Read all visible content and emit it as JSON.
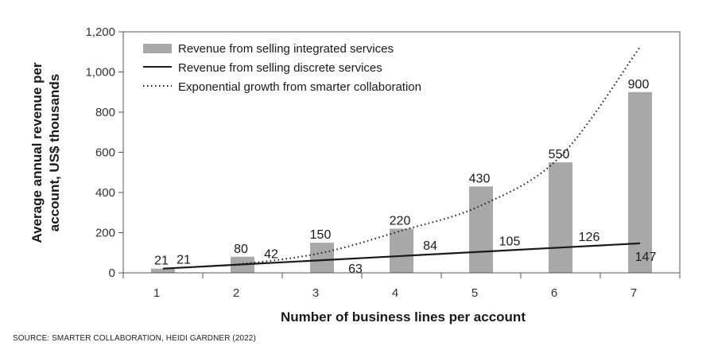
{
  "chart_data": {
    "type": "bar",
    "categories": [
      "1",
      "2",
      "3",
      "4",
      "5",
      "6",
      "7"
    ],
    "series": [
      {
        "name": "Revenue from selling integrated services",
        "type": "bar",
        "values": [
          21,
          80,
          150,
          220,
          430,
          550,
          900
        ],
        "color": "#a8a8a8"
      },
      {
        "name": "Revenue from selling discrete services",
        "type": "line",
        "values": [
          21,
          42,
          63,
          84,
          105,
          126,
          147
        ],
        "color": "#1a1a1a"
      },
      {
        "name": "Exponential growth from smarter collaboration",
        "type": "line",
        "style": "dotted",
        "values": [
          21,
          45,
          100,
          210,
          335,
          580,
          1125
        ],
        "color": "#1a1a1a"
      }
    ],
    "bar_labels": [
      "21",
      "80",
      "150",
      "220",
      "430",
      "550",
      "900"
    ],
    "line_labels": [
      "21",
      "42",
      "63",
      "84",
      "105",
      "126",
      "147"
    ],
    "xlabel": "Number of business lines per account",
    "ylabel": "Average annual revenue per account, US$ thousands",
    "ylim": [
      0,
      1200
    ],
    "yticks": [
      "0",
      "200",
      "400",
      "600",
      "800",
      "1,000",
      "1,200"
    ],
    "legend_position": "top-left",
    "grid": false
  },
  "source": "SOURCE: SMARTER COLLABORATION, HEIDI GARDNER (2022)"
}
